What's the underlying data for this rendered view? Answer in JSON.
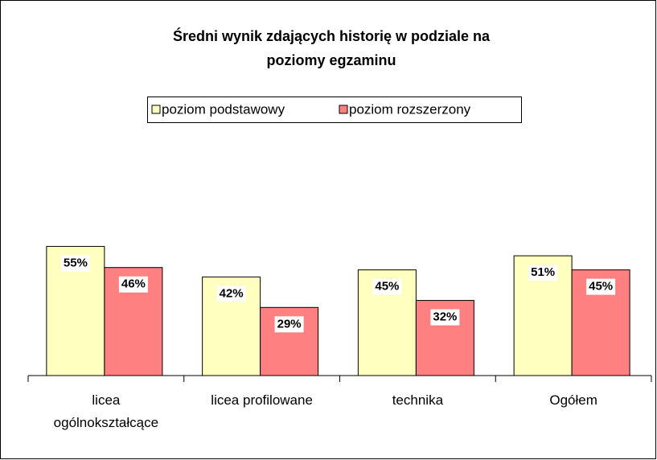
{
  "chart_data": {
    "type": "bar",
    "title": "Średni wynik zdających historię w podziale na poziomy egzaminu",
    "categories": [
      "licea ogólnokształcące",
      "licea profilowane",
      "technika",
      "Ogółem"
    ],
    "series": [
      {
        "name": "poziom podstawowy",
        "color": "#ffffc0",
        "values": [
          55,
          42,
          45,
          51
        ],
        "value_labels": [
          "55%",
          "42%",
          "45%",
          "51%"
        ]
      },
      {
        "name": "poziom rozszerzony",
        "color": "#ff8080",
        "values": [
          46,
          29,
          32,
          45
        ],
        "value_labels": [
          "46%",
          "29%",
          "32%",
          "45%"
        ]
      }
    ],
    "ylim": [
      0,
      100
    ]
  }
}
